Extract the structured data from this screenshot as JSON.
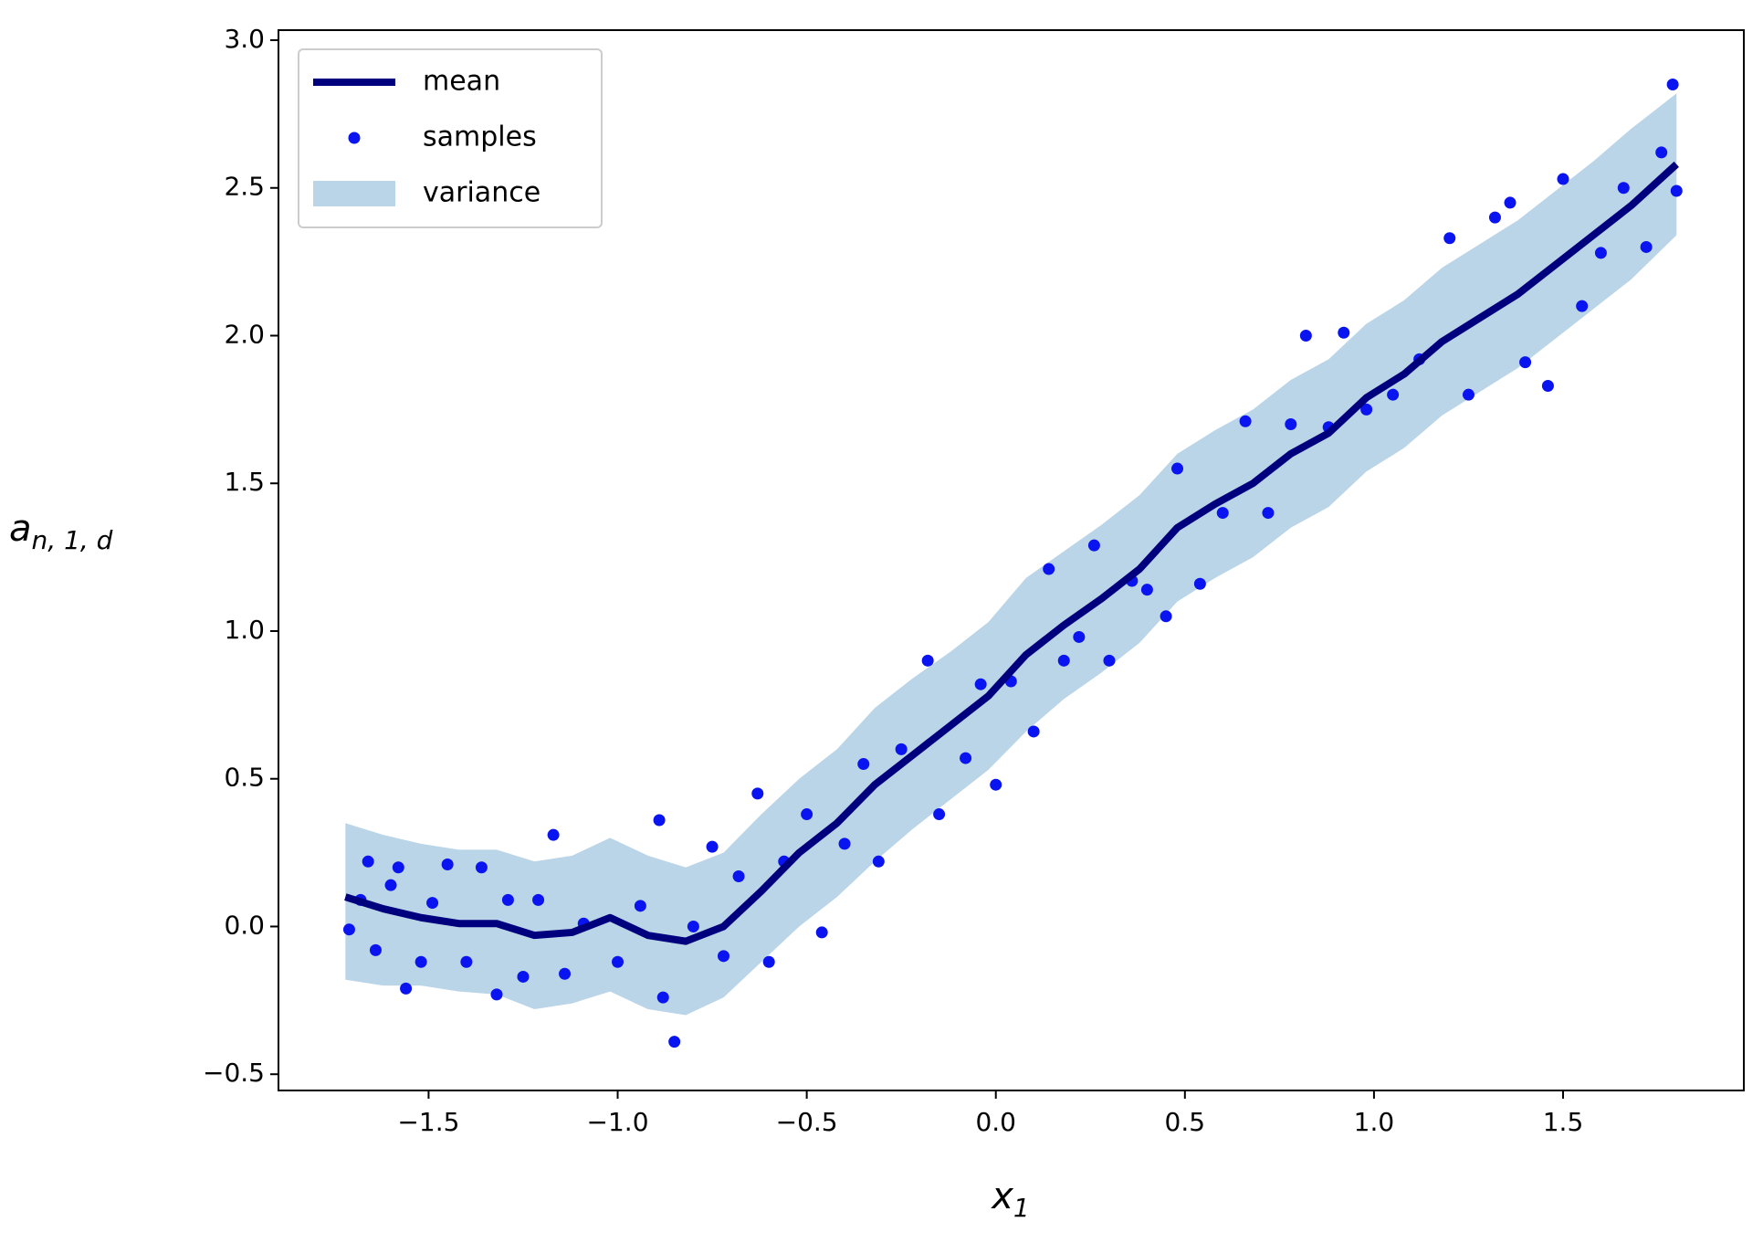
{
  "chart_data": {
    "type": "line",
    "x_label": {
      "base": "x",
      "sub": "1"
    },
    "y_label": {
      "base": "a",
      "sub": "n, 1, d"
    },
    "xlim": [
      -1.897,
      1.978
    ],
    "ylim": [
      -0.555,
      3.034
    ],
    "xticks": [
      {
        "value": -1.5,
        "label": "−1.5"
      },
      {
        "value": -1.0,
        "label": "−1.0"
      },
      {
        "value": -0.5,
        "label": "−0.5"
      },
      {
        "value": 0,
        "label": "0.0"
      },
      0.5,
      {
        "value": 1.0,
        "label": "1.0"
      },
      1.5
    ],
    "yticks": [
      {
        "value": -0.5,
        "label": "−0.5"
      },
      {
        "value": 0,
        "label": "0.0"
      },
      0.5,
      {
        "value": 1.0,
        "label": "1.0"
      },
      1.5,
      {
        "value": 2.0,
        "label": "2.0"
      },
      2.5,
      {
        "value": 3.0,
        "label": "3.0"
      }
    ],
    "legend": "upper left",
    "series": [
      {
        "name": "mean",
        "kind": "line",
        "color": "#00007f",
        "x": [
          -1.72,
          -1.62,
          -1.52,
          -1.42,
          -1.32,
          -1.22,
          -1.12,
          -1.02,
          -0.92,
          -0.82,
          -0.72,
          -0.62,
          -0.52,
          -0.42,
          -0.32,
          -0.22,
          -0.12,
          -0.02,
          0.08,
          0.18,
          0.28,
          0.38,
          0.48,
          0.58,
          0.68,
          0.78,
          0.88,
          0.98,
          1.08,
          1.18,
          1.28,
          1.38,
          1.48,
          1.58,
          1.68,
          1.8
        ],
        "values": [
          0.1,
          0.06,
          0.03,
          0.01,
          0.01,
          -0.03,
          -0.02,
          0.03,
          -0.03,
          -0.05,
          0,
          0.12,
          0.25,
          0.35,
          0.48,
          0.58,
          0.68,
          0.78,
          0.92,
          1.02,
          1.11,
          1.21,
          1.35,
          1.43,
          1.5,
          1.6,
          1.67,
          1.79,
          1.87,
          1.98,
          2.06,
          2.14,
          2.24,
          2.34,
          2.44,
          2.58
        ]
      },
      {
        "name": "samples",
        "kind": "scatter",
        "color": "#0a14f0",
        "x": [
          -1.71,
          -1.68,
          -1.66,
          -1.64,
          -1.6,
          -1.58,
          -1.56,
          -1.52,
          -1.49,
          -1.45,
          -1.4,
          -1.36,
          -1.32,
          -1.29,
          -1.25,
          -1.21,
          -1.17,
          -1.14,
          -1.09,
          -1.0,
          -0.94,
          -0.89,
          -0.88,
          -0.85,
          -0.8,
          -0.75,
          -0.72,
          -0.68,
          -0.63,
          -0.6,
          -0.56,
          -0.5,
          -0.46,
          -0.4,
          -0.35,
          -0.31,
          -0.25,
          -0.18,
          -0.15,
          -0.08,
          -0.04,
          0,
          0.04,
          0.1,
          0.14,
          0.18,
          0.22,
          0.26,
          0.3,
          0.36,
          0.4,
          0.45,
          0.48,
          0.54,
          0.6,
          0.66,
          0.72,
          0.78,
          0.82,
          0.88,
          0.92,
          0.98,
          1.05,
          1.12,
          1.2,
          1.25,
          1.32,
          1.36,
          1.4,
          1.46,
          1.5,
          1.55,
          1.6,
          1.66,
          1.72,
          1.76,
          1.79,
          1.8
        ],
        "values": [
          -0.01,
          0.09,
          0.22,
          -0.08,
          0.14,
          0.2,
          -0.21,
          -0.12,
          0.08,
          0.21,
          -0.12,
          0.2,
          -0.23,
          0.09,
          -0.17,
          0.09,
          0.31,
          -0.16,
          0.01,
          -0.12,
          0.07,
          0.36,
          -0.24,
          -0.39,
          0,
          0.27,
          -0.1,
          0.17,
          0.45,
          -0.12,
          0.22,
          0.38,
          -0.02,
          0.28,
          0.55,
          0.22,
          0.6,
          0.9,
          0.38,
          0.57,
          0.82,
          0.48,
          0.83,
          0.66,
          1.21,
          0.9,
          0.98,
          1.29,
          0.9,
          1.17,
          1.14,
          1.05,
          1.55,
          1.16,
          1.4,
          1.71,
          1.4,
          1.7,
          2.0,
          1.69,
          2.01,
          1.75,
          1.8,
          1.92,
          2.33,
          1.8,
          2.4,
          2.45,
          1.91,
          1.83,
          2.53,
          2.1,
          2.28,
          2.5,
          2.3,
          2.62,
          2.85,
          2.49
        ]
      },
      {
        "name": "variance",
        "kind": "band",
        "color": "#bad4e8",
        "x": [
          -1.72,
          -1.62,
          -1.52,
          -1.42,
          -1.32,
          -1.22,
          -1.12,
          -1.02,
          -0.92,
          -0.82,
          -0.72,
          -0.62,
          -0.52,
          -0.42,
          -0.32,
          -0.22,
          -0.12,
          -0.02,
          0.08,
          0.18,
          0.28,
          0.38,
          0.48,
          0.58,
          0.68,
          0.78,
          0.88,
          0.98,
          1.08,
          1.18,
          1.28,
          1.38,
          1.48,
          1.58,
          1.68,
          1.8
        ],
        "lower": [
          -0.18,
          -0.2,
          -0.2,
          -0.22,
          -0.23,
          -0.28,
          -0.26,
          -0.22,
          -0.28,
          -0.3,
          -0.24,
          -0.12,
          0.0,
          0.1,
          0.22,
          0.33,
          0.43,
          0.53,
          0.66,
          0.77,
          0.86,
          0.96,
          1.1,
          1.18,
          1.25,
          1.35,
          1.42,
          1.54,
          1.62,
          1.73,
          1.81,
          1.89,
          1.99,
          2.09,
          2.19,
          2.34
        ],
        "upper": [
          0.35,
          0.31,
          0.28,
          0.26,
          0.26,
          0.22,
          0.24,
          0.3,
          0.24,
          0.2,
          0.25,
          0.38,
          0.5,
          0.6,
          0.74,
          0.84,
          0.93,
          1.03,
          1.18,
          1.27,
          1.36,
          1.46,
          1.6,
          1.68,
          1.75,
          1.85,
          1.92,
          2.04,
          2.12,
          2.23,
          2.31,
          2.39,
          2.49,
          2.59,
          2.7,
          2.82
        ]
      }
    ]
  }
}
